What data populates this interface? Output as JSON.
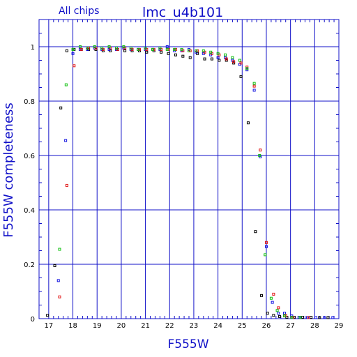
{
  "chart_data": {
    "type": "scatter",
    "title": "lmc_u4b101",
    "subtitle": "All chips",
    "xlabel": "F555W",
    "ylabel": "F555W completeness",
    "xlim": [
      16.6,
      29
    ],
    "ylim": [
      0,
      1.1
    ],
    "xticks": [
      "17",
      "18",
      "19",
      "20",
      "21",
      "22",
      "23",
      "24",
      "25",
      "26",
      "27",
      "28",
      "29"
    ],
    "yticks": [
      "0",
      "0.2",
      "0.4",
      "0.6",
      "0.8",
      "1"
    ],
    "grid": true,
    "marker": "open-square",
    "series": [
      {
        "color": "#000000",
        "points": [
          [
            16.95,
            0.012
          ],
          [
            17.25,
            0.195
          ],
          [
            17.5,
            0.775
          ],
          [
            17.75,
            0.985
          ],
          [
            18.05,
            0.99
          ],
          [
            18.35,
            0.99
          ],
          [
            18.65,
            0.99
          ],
          [
            18.95,
            0.99
          ],
          [
            19.25,
            0.985
          ],
          [
            19.55,
            0.985
          ],
          [
            19.85,
            0.99
          ],
          [
            20.15,
            0.985
          ],
          [
            20.45,
            0.985
          ],
          [
            20.75,
            0.985
          ],
          [
            21.05,
            0.98
          ],
          [
            21.35,
            0.985
          ],
          [
            21.65,
            0.98
          ],
          [
            21.95,
            0.975
          ],
          [
            22.25,
            0.97
          ],
          [
            22.55,
            0.965
          ],
          [
            22.85,
            0.96
          ],
          [
            23.15,
            0.975
          ],
          [
            23.45,
            0.955
          ],
          [
            23.75,
            0.955
          ],
          [
            24.05,
            0.95
          ],
          [
            24.35,
            0.95
          ],
          [
            24.65,
            0.94
          ],
          [
            24.95,
            0.89
          ],
          [
            25.25,
            0.72
          ],
          [
            25.55,
            0.32
          ],
          [
            25.8,
            0.085
          ],
          [
            26.05,
            0.02
          ],
          [
            26.3,
            0.012
          ],
          [
            26.55,
            0.008
          ],
          [
            26.85,
            0.005
          ],
          [
            27.15,
            0.005
          ],
          [
            27.5,
            0.005
          ],
          [
            27.85,
            0.005
          ],
          [
            28.2,
            0.004
          ],
          [
            28.55,
            0.004
          ]
        ]
      },
      {
        "color": "#1010e0",
        "points": [
          [
            17.4,
            0.14
          ],
          [
            17.7,
            0.655
          ],
          [
            18.0,
            0.975
          ],
          [
            18.3,
            0.99
          ],
          [
            18.6,
            0.99
          ],
          [
            18.9,
            0.995
          ],
          [
            19.2,
            0.99
          ],
          [
            19.5,
            0.99
          ],
          [
            19.8,
            0.99
          ],
          [
            20.1,
            0.995
          ],
          [
            20.4,
            0.99
          ],
          [
            20.7,
            0.99
          ],
          [
            21.0,
            0.99
          ],
          [
            21.3,
            0.99
          ],
          [
            21.6,
            0.99
          ],
          [
            21.9,
            1.0
          ],
          [
            22.2,
            0.985
          ],
          [
            22.5,
            0.985
          ],
          [
            22.8,
            0.99
          ],
          [
            23.1,
            0.98
          ],
          [
            23.4,
            0.975
          ],
          [
            23.7,
            0.97
          ],
          [
            24.0,
            0.96
          ],
          [
            24.3,
            0.96
          ],
          [
            24.6,
            0.95
          ],
          [
            24.9,
            0.935
          ],
          [
            25.2,
            0.915
          ],
          [
            25.5,
            0.84
          ],
          [
            25.75,
            0.595
          ],
          [
            26.0,
            0.265
          ],
          [
            26.25,
            0.06
          ],
          [
            26.5,
            0.02
          ],
          [
            26.75,
            0.02
          ],
          [
            27.05,
            0.01
          ],
          [
            27.35,
            0.005
          ],
          [
            27.7,
            0.004
          ],
          [
            28.05,
            0.004
          ],
          [
            28.4,
            0.004
          ],
          [
            28.75,
            0.004
          ]
        ]
      },
      {
        "color": "#e01010",
        "points": [
          [
            17.45,
            0.08
          ],
          [
            17.75,
            0.49
          ],
          [
            18.05,
            0.93
          ],
          [
            18.35,
            0.99
          ],
          [
            18.65,
            0.995
          ],
          [
            18.95,
            0.995
          ],
          [
            19.25,
            0.99
          ],
          [
            19.55,
            0.995
          ],
          [
            19.85,
            0.99
          ],
          [
            20.15,
            0.995
          ],
          [
            20.45,
            0.99
          ],
          [
            20.75,
            0.99
          ],
          [
            21.05,
            0.99
          ],
          [
            21.35,
            0.99
          ],
          [
            21.65,
            0.99
          ],
          [
            21.95,
            0.99
          ],
          [
            22.25,
            0.99
          ],
          [
            22.55,
            0.985
          ],
          [
            22.85,
            0.985
          ],
          [
            23.15,
            0.985
          ],
          [
            23.45,
            0.98
          ],
          [
            23.75,
            0.975
          ],
          [
            24.05,
            0.97
          ],
          [
            24.35,
            0.955
          ],
          [
            24.65,
            0.945
          ],
          [
            24.95,
            0.94
          ],
          [
            25.2,
            0.925
          ],
          [
            25.5,
            0.855
          ],
          [
            25.75,
            0.62
          ],
          [
            26.0,
            0.28
          ],
          [
            26.3,
            0.09
          ],
          [
            26.5,
            0.04
          ],
          [
            26.8,
            0.012
          ],
          [
            27.1,
            0.005
          ],
          [
            27.4,
            0.005
          ],
          [
            27.75,
            0.004
          ]
        ]
      },
      {
        "color": "#10c010",
        "points": [
          [
            17.45,
            0.255
          ],
          [
            17.72,
            0.86
          ],
          [
            18.0,
            0.99
          ],
          [
            18.3,
            1.0
          ],
          [
            18.6,
            0.995
          ],
          [
            18.9,
            1.0
          ],
          [
            19.2,
            0.995
          ],
          [
            19.5,
            1.0
          ],
          [
            19.8,
            0.995
          ],
          [
            20.1,
            1.0
          ],
          [
            20.4,
            0.995
          ],
          [
            20.7,
            0.99
          ],
          [
            21.0,
            0.995
          ],
          [
            21.3,
            0.99
          ],
          [
            21.6,
            0.995
          ],
          [
            21.9,
            0.99
          ],
          [
            22.2,
            0.99
          ],
          [
            22.5,
            0.99
          ],
          [
            22.8,
            0.985
          ],
          [
            23.1,
            0.985
          ],
          [
            23.4,
            0.985
          ],
          [
            23.7,
            0.98
          ],
          [
            24.0,
            0.975
          ],
          [
            24.3,
            0.97
          ],
          [
            24.6,
            0.96
          ],
          [
            24.9,
            0.95
          ],
          [
            25.2,
            0.92
          ],
          [
            25.5,
            0.865
          ],
          [
            25.72,
            0.6
          ],
          [
            25.95,
            0.235
          ],
          [
            26.2,
            0.075
          ],
          [
            26.45,
            0.03
          ],
          [
            26.75,
            0.01
          ],
          [
            27.05,
            0.005
          ],
          [
            27.4,
            0.005
          ]
        ]
      }
    ]
  }
}
